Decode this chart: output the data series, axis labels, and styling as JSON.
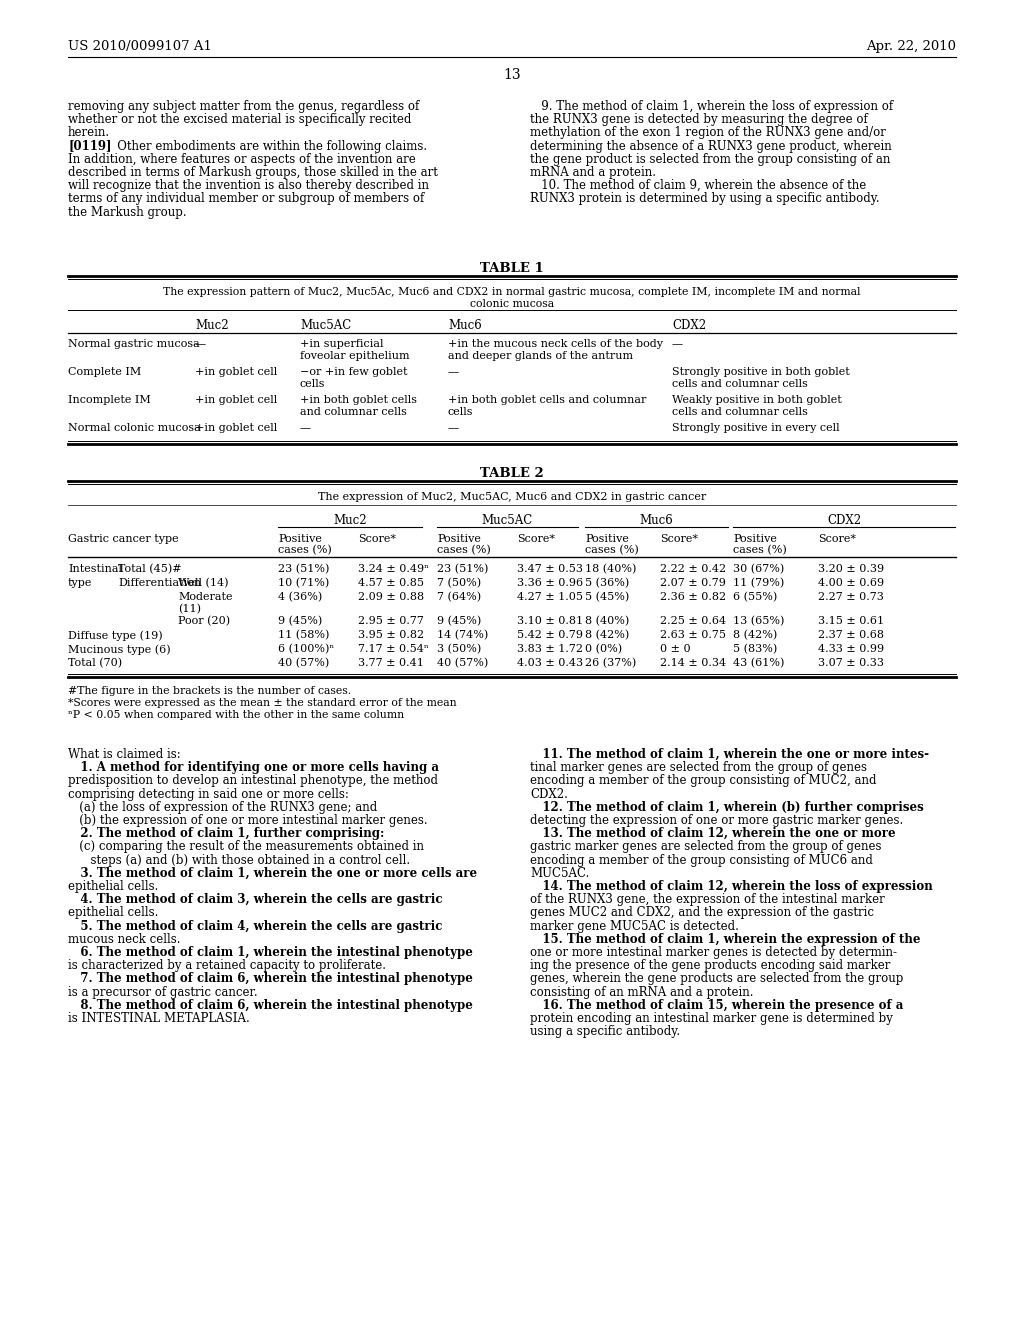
{
  "background_color": "#ffffff",
  "header_left": "US 2010/0099107 A1",
  "header_right": "Apr. 22, 2010",
  "page_number": "13",
  "top_left_lines": [
    "removing any subject matter from the genus, regardless of",
    "whether or not the excised material is specifically recited",
    "herein.",
    "[0119]   Other embodiments are within the following claims.",
    "In addition, where features or aspects of the invention are",
    "described in terms of Markush groups, those skilled in the art",
    "will recognize that the invention is also thereby described in",
    "terms of any individual member or subgroup of members of",
    "the Markush group."
  ],
  "top_right_lines": [
    "   9. The method of claim 1, wherein the loss of expression of",
    "the RUNX3 gene is detected by measuring the degree of",
    "methylation of the exon 1 region of the RUNX3 gene and/or",
    "determining the absence of a RUNX3 gene product, wherein",
    "the gene product is selected from the group consisting of an",
    "mRNA and a protein.",
    "   10. The method of claim 9, wherein the absence of the",
    "RUNX3 protein is determined by using a specific antibody."
  ],
  "table1_rows": [
    [
      "Normal gastric mucosa",
      "—",
      "+in superficial\nfoveolar epithelium",
      "+in the mucous neck cells of the body\nand deeper glands of the antrum",
      "—"
    ],
    [
      "Complete IM",
      "+in goblet cell",
      "−or +in few goblet\ncells",
      "—",
      "Strongly positive in both goblet\ncells and columnar cells"
    ],
    [
      "Incomplete IM",
      "+in goblet cell",
      "+in both goblet cells\nand columnar cells",
      "+in both goblet cells and columnar\ncells",
      "Weakly positive in both goblet\ncells and columnar cells"
    ],
    [
      "Normal colonic mucosa",
      "+in goblet cell",
      "—",
      "—",
      "Strongly positive in every cell"
    ]
  ],
  "table2_rows": [
    [
      "Intestinal",
      "Total (45)#",
      "",
      "23 (51%)",
      "3.24 ± 0.49ⁿ",
      "23 (51%)",
      "3.47 ± 0.53",
      "18 (40%)",
      "2.22 ± 0.42",
      "30 (67%)",
      "3.20 ± 0.39"
    ],
    [
      "type",
      "Differentiation",
      "Well (14)",
      "10 (71%)",
      "4.57 ± 0.85",
      "7 (50%)",
      "3.36 ± 0.96",
      "5 (36%)",
      "2.07 ± 0.79",
      "11 (79%)",
      "4.00 ± 0.69"
    ],
    [
      "",
      "",
      "Moderate\n(11)",
      "4 (36%)",
      "2.09 ± 0.88",
      "7 (64%)",
      "4.27 ± 1.05",
      "5 (45%)",
      "2.36 ± 0.82",
      "6 (55%)",
      "2.27 ± 0.73"
    ],
    [
      "",
      "",
      "Poor (20)",
      "9 (45%)",
      "2.95 ± 0.77",
      "9 (45%)",
      "3.10 ± 0.81",
      "8 (40%)",
      "2.25 ± 0.64",
      "13 (65%)",
      "3.15 ± 0.61"
    ],
    [
      "Diffuse type (19)",
      "",
      "",
      "11 (58%)",
      "3.95 ± 0.82",
      "14 (74%)",
      "5.42 ± 0.79",
      "8 (42%)",
      "2.63 ± 0.75",
      "8 (42%)",
      "2.37 ± 0.68"
    ],
    [
      "Mucinous type (6)",
      "",
      "",
      "6 (100%)ⁿ",
      "7.17 ± 0.54ⁿ",
      "3 (50%)",
      "3.83 ± 1.72",
      "0 (0%)",
      "0 ± 0",
      "5 (83%)",
      "4.33 ± 0.99"
    ],
    [
      "Total (70)",
      "",
      "",
      "40 (57%)",
      "3.77 ± 0.41",
      "40 (57%)",
      "4.03 ± 0.43",
      "26 (37%)",
      "2.14 ± 0.34",
      "43 (61%)",
      "3.07 ± 0.33"
    ]
  ],
  "table2_footnotes": [
    "#The figure in the brackets is the number of cases.",
    "*Scores were expressed as the mean ± the standard error of the mean",
    "ⁿP < 0.05 when compared with the other in the same column"
  ],
  "claims_left": [
    [
      "normal",
      "What is claimed is:"
    ],
    [
      "bold",
      "   1. A method for identifying one or more cells having a"
    ],
    [
      "normal",
      "predisposition to develop an intestinal phenotype, the method"
    ],
    [
      "normal",
      "comprising detecting in said one or more cells:"
    ],
    [
      "normal",
      "   (a) the loss of expression of the RUNX3 gene; and"
    ],
    [
      "normal",
      "   (b) the expression of one or more intestinal marker genes."
    ],
    [
      "bold",
      "   2. The method of claim 1, further comprising:"
    ],
    [
      "normal",
      "   (c) comparing the result of the measurements obtained in"
    ],
    [
      "normal",
      "      steps (a) and (b) with those obtained in a control cell."
    ],
    [
      "bold",
      "   3. The method of claim 1, wherein the one or more cells are"
    ],
    [
      "normal",
      "epithelial cells."
    ],
    [
      "bold",
      "   4. The method of claim 3, wherein the cells are gastric"
    ],
    [
      "normal",
      "epithelial cells."
    ],
    [
      "bold",
      "   5. The method of claim 4, wherein the cells are gastric"
    ],
    [
      "normal",
      "mucous neck cells."
    ],
    [
      "bold",
      "   6. The method of claim 1, wherein the intestinal phenotype"
    ],
    [
      "normal",
      "is characterized by a retained capacity to proliferate."
    ],
    [
      "bold",
      "   7. The method of claim 6, wherein the intestinal phenotype"
    ],
    [
      "normal",
      "is a precursor of gastric cancer."
    ],
    [
      "bold",
      "   8. The method of claim 6, wherein the intestinal phenotype"
    ],
    [
      "normal",
      "is INTESTINAL METAPLASIA."
    ]
  ],
  "claims_right": [
    [
      "bold",
      "   11. The method of claim 1, wherein the one or more intes-"
    ],
    [
      "normal",
      "tinal marker genes are selected from the group of genes"
    ],
    [
      "normal",
      "encoding a member of the group consisting of MUC2, and"
    ],
    [
      "normal",
      "CDX2."
    ],
    [
      "bold",
      "   12. The method of claim 1, wherein (b) further comprises"
    ],
    [
      "normal",
      "detecting the expression of one or more gastric marker genes."
    ],
    [
      "bold",
      "   13. The method of claim 12, wherein the one or more"
    ],
    [
      "normal",
      "gastric marker genes are selected from the group of genes"
    ],
    [
      "normal",
      "encoding a member of the group consisting of MUC6 and"
    ],
    [
      "normal",
      "MUC5AC."
    ],
    [
      "bold",
      "   14. The method of claim 12, wherein the loss of expression"
    ],
    [
      "normal",
      "of the RUNX3 gene, the expression of the intestinal marker"
    ],
    [
      "normal",
      "genes MUC2 and CDX2, and the expression of the gastric"
    ],
    [
      "normal",
      "marker gene MUC5AC is detected."
    ],
    [
      "bold",
      "   15. The method of claim 1, wherein the expression of the"
    ],
    [
      "normal",
      "one or more intestinal marker genes is detected by determin-"
    ],
    [
      "normal",
      "ing the presence of the gene products encoding said marker"
    ],
    [
      "normal",
      "genes, wherein the gene products are selected from the group"
    ],
    [
      "normal",
      "consisting of an mRNA and a protein."
    ],
    [
      "bold",
      "   16. The method of claim 15, wherein the presence of a"
    ],
    [
      "normal",
      "protein encoding an intestinal marker gene is determined by"
    ],
    [
      "normal",
      "using a specific antibody."
    ]
  ]
}
